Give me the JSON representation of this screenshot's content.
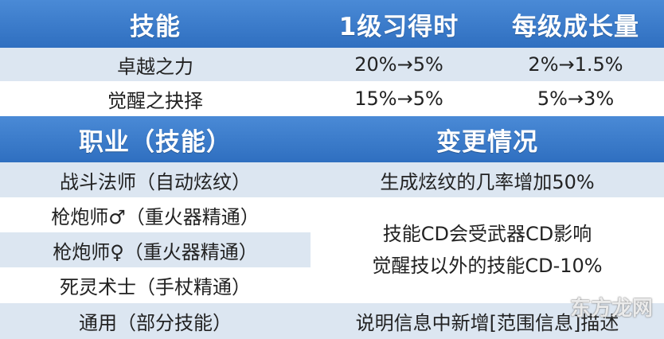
{
  "table1": {
    "headers": [
      "技能",
      "1级习得时",
      "每级成长量"
    ],
    "rows": [
      {
        "skill": "卓越之力",
        "initial": "20%→5%",
        "growth": "2%→1.5%"
      },
      {
        "skill": "觉醒之抉择",
        "initial": "15%→5%",
        "growth": "5%→3%"
      }
    ]
  },
  "table2": {
    "headers": [
      "职业（技能）",
      "变更情况"
    ],
    "rows": [
      {
        "job": "战斗法师（自动炫纹）",
        "change": "生成炫纹的几率增加50%"
      },
      {
        "job": "枪炮师♂（重火器精通）"
      },
      {
        "job": "枪炮师♀（重火器精通）"
      },
      {
        "job": "死灵术士（手杖精通）"
      },
      {
        "job": "通用（部分技能）",
        "change": "说明信息中新增[范围信息]描述"
      }
    ],
    "merged_change": [
      "技能CD会受武器CD影响",
      "觉醒技以外的技能CD-10%"
    ]
  },
  "watermark": "东方龙网",
  "colors": {
    "header_bg": "#3b7cca",
    "row_light": "#dce6f1",
    "row_white": "#ffffff"
  }
}
